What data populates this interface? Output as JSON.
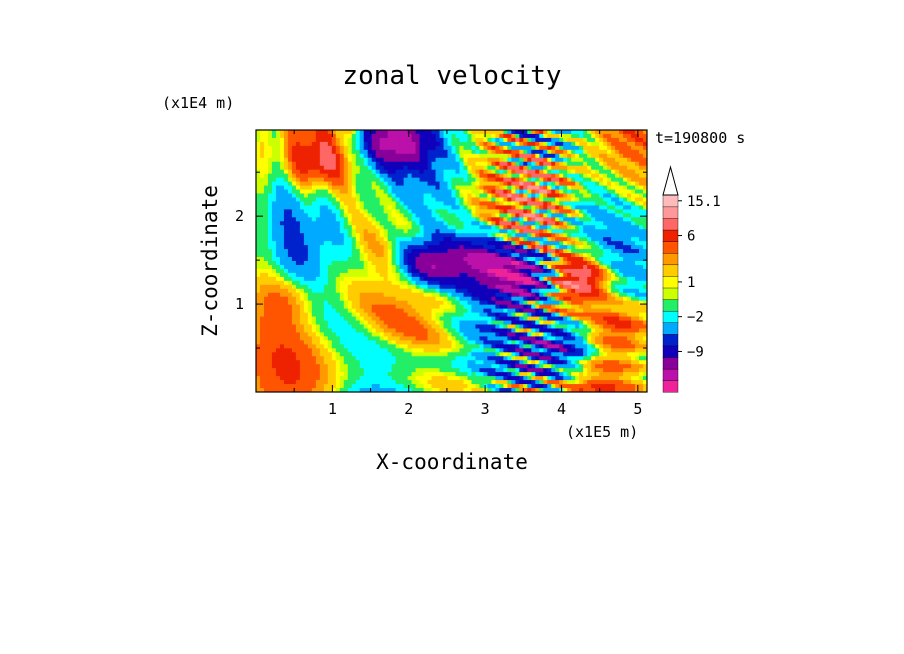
{
  "chart_data": {
    "type": "heatmap",
    "title": "zonal velocity",
    "xlabel": "X-coordinate",
    "ylabel": "Z-coordinate",
    "x_unit": "(x1E5 m)",
    "y_unit": "(x1E4 m)",
    "time_label": "t=190800 s",
    "xlim": [
      0,
      5.12
    ],
    "ylim": [
      0,
      2.98
    ],
    "xticks": [
      "1",
      "2",
      "3",
      "4",
      "5"
    ],
    "yticks": [
      "1",
      "2"
    ],
    "colorbar": {
      "labels": [
        "15.1",
        "6",
        "1",
        "−2",
        "−9"
      ],
      "extend": "max",
      "colors": [
        "#ee2299",
        "#bb11aa",
        "#880099",
        "#1100bb",
        "#0022cc",
        "#00aaff",
        "#00ffff",
        "#22ee66",
        "#ccff00",
        "#ffff00",
        "#ffcc00",
        "#ff9900",
        "#ff5500",
        "#ee2200",
        "#ff6666",
        "#ff9999",
        "#ffbbbb"
      ],
      "levels": [
        -16,
        -12,
        -9,
        -6,
        -4,
        -2,
        -1,
        0,
        0.5,
        1,
        2,
        3,
        4.5,
        6,
        9,
        12,
        15.1
      ]
    },
    "field_features": [
      {
        "x": 2.25,
        "z": 1.45,
        "value": -12
      },
      {
        "x": 1.8,
        "z": 2.85,
        "value": -12
      },
      {
        "x": 3.0,
        "z": 1.5,
        "value": -10
      },
      {
        "x": 3.5,
        "z": 1.3,
        "value": -14
      },
      {
        "x": 4.2,
        "z": 1.3,
        "value": 10
      },
      {
        "x": 0.8,
        "z": 2.6,
        "value": 5
      },
      {
        "x": 0.5,
        "z": 1.1,
        "value": 3
      },
      {
        "x": 4.8,
        "z": 0.8,
        "value": 5
      },
      {
        "x": 4.0,
        "z": 0.5,
        "value": -8
      },
      {
        "x": 3.8,
        "z": 2.4,
        "value": 2
      }
    ]
  }
}
